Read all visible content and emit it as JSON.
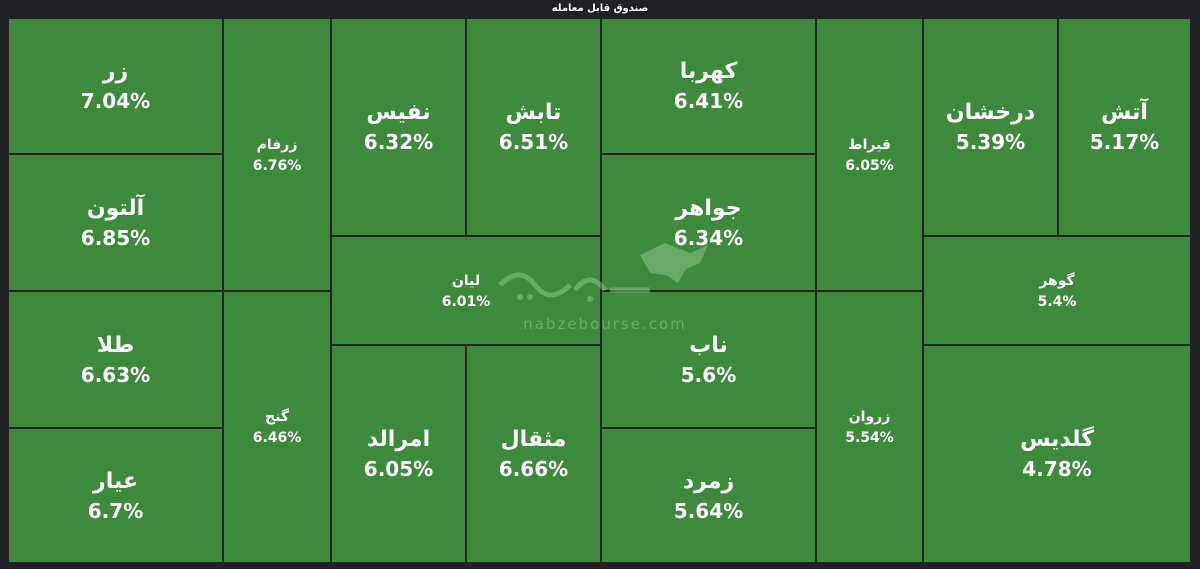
{
  "header": {
    "title": "صندوق قابل معامله"
  },
  "colors": {
    "tile": "#3e8a3d",
    "border": "#23252a",
    "background": "#1f2125"
  },
  "tiles": [
    {
      "name": "زر",
      "pct": "7.04%"
    },
    {
      "name": "آلتون",
      "pct": "6.85%"
    },
    {
      "name": "طلا",
      "pct": "6.63%"
    },
    {
      "name": "عیار",
      "pct": "6.7%"
    },
    {
      "name": "زرفام",
      "pct": "6.76%"
    },
    {
      "name": "گنج",
      "pct": "6.46%"
    },
    {
      "name": "نفیس",
      "pct": "6.32%"
    },
    {
      "name": "تابش",
      "pct": "6.51%"
    },
    {
      "name": "لیان",
      "pct": "6.01%"
    },
    {
      "name": "امرالد",
      "pct": "6.05%"
    },
    {
      "name": "مثقال",
      "pct": "6.66%"
    },
    {
      "name": "کهربا",
      "pct": "6.41%"
    },
    {
      "name": "جواهر",
      "pct": "6.34%"
    },
    {
      "name": "ناب",
      "pct": "5.6%"
    },
    {
      "name": "زمرد",
      "pct": "5.64%"
    },
    {
      "name": "قیراط",
      "pct": "6.05%"
    },
    {
      "name": "زروان",
      "pct": "5.54%"
    },
    {
      "name": "درخشان",
      "pct": "5.39%"
    },
    {
      "name": "آتش",
      "pct": "5.17%"
    },
    {
      "name": "گوهر",
      "pct": "5.4%"
    },
    {
      "name": "گلدیس",
      "pct": "4.78%"
    }
  ],
  "watermark": {
    "text": "nabzebourse.com",
    "icon": "bull-logo-icon"
  }
}
